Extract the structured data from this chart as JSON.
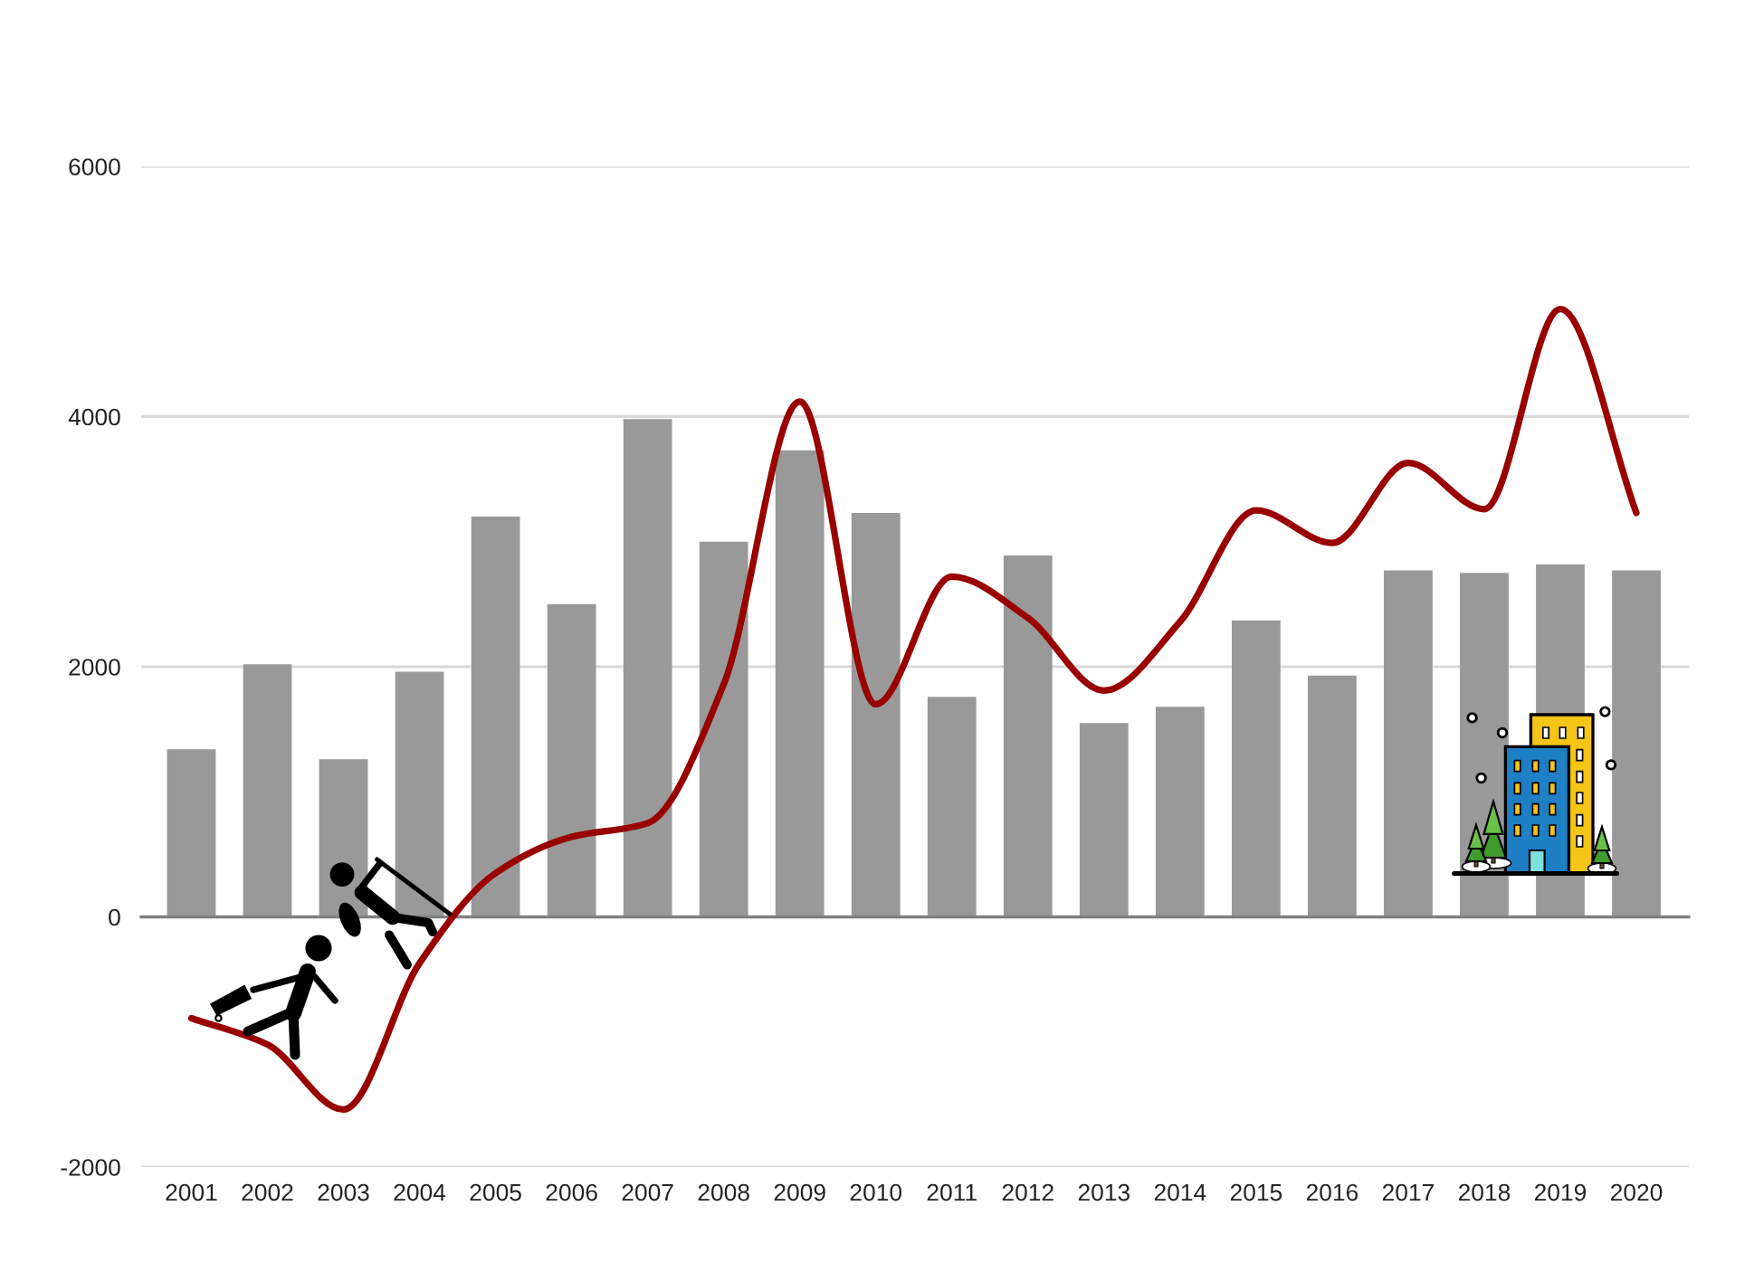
{
  "chart_data": {
    "type": "bar",
    "categories": [
      "2001",
      "2002",
      "2003",
      "2004",
      "2005",
      "2006",
      "2007",
      "2008",
      "2009",
      "2010",
      "2011",
      "2012",
      "2013",
      "2014",
      "2015",
      "2016",
      "2017",
      "2018",
      "2019",
      "2020"
    ],
    "series": [
      {
        "color": "#999999",
        "values": [
          1340,
          2020,
          1260,
          1960,
          3200,
          2500,
          3980,
          3000,
          3730,
          3230,
          1760,
          2890,
          1550,
          1680,
          2370,
          1930,
          2770,
          2750,
          2820,
          2770
        ]
      },
      {
        "type": "line",
        "color": "#990000",
        "values": [
          -810,
          -1020,
          -1540,
          -370,
          350,
          640,
          750,
          1860,
          4120,
          1700,
          2720,
          2390,
          1810,
          2360,
          3250,
          2990,
          3630,
          3260,
          4860,
          3230
        ]
      }
    ],
    "ylim": [
      -2000,
      6000
    ],
    "yticks": [
      -2000,
      0,
      2000,
      4000,
      6000
    ],
    "grid": "y"
  }
}
